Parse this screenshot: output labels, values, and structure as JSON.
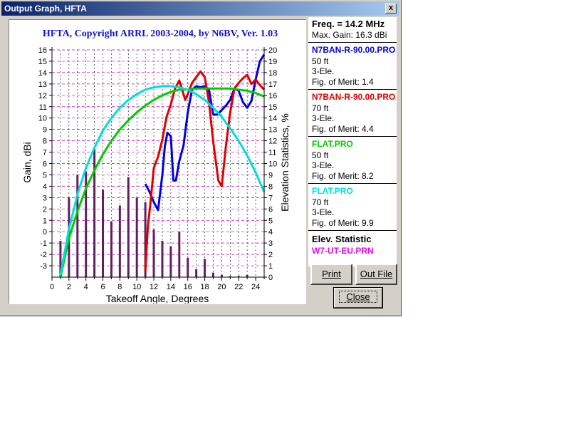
{
  "window": {
    "title": "Output Graph, HFTA",
    "close_glyph": "x"
  },
  "graph": {
    "title": "HFTA, Copyright ARRL 2003-2004, by N6BV, Ver. 1.03",
    "title_color": "#1414c8"
  },
  "legend": {
    "freq": "Freq. = 14.2 MHz",
    "max_gain": "Max. Gain: 16.3 dBi",
    "entries": [
      {
        "name": "N7BAN-R-90.00.PRO",
        "height": "50 ft",
        "type": "3-Ele.",
        "merit": "Fig. of Merit:  1.4",
        "color": "#0000e0"
      },
      {
        "name": "N7BAN-R-90.00.PRO",
        "height": "70 ft",
        "type": "3-Ele.",
        "merit": "Fig. of Merit:  4.4",
        "color": "#e00000"
      },
      {
        "name": "FLAT.PRO",
        "height": "50 ft",
        "type": "3-Ele.",
        "merit": "Fig. of Merit:  8.2",
        "color": "#00cc00"
      },
      {
        "name": "FLAT.PRO",
        "height": "70 ft",
        "type": "3-Ele.",
        "merit": "Fig. of Merit:  9.9",
        "color": "#00dddd"
      }
    ],
    "elev_heading": "Elev. Statistic",
    "elev_file": "W7-UT-EU.PRN",
    "elev_color": "#e010e0"
  },
  "buttons": {
    "print": "Print",
    "outfile": "Out File",
    "close": "Close"
  },
  "chart_data": {
    "type": "line",
    "title": "HFTA, Copyright ARRL 2003-2004, by N6BV, Ver. 1.03",
    "xlabel": "Takeoff Angle, Degrees",
    "ylabel": "Gain, dBi",
    "y2label": "Elevation Statistics, %",
    "xlim": [
      0,
      25
    ],
    "ylim": [
      -4,
      16
    ],
    "y2lim": [
      0,
      20
    ],
    "x_ticks": [
      0,
      2,
      4,
      6,
      8,
      10,
      12,
      14,
      16,
      18,
      20,
      22,
      24
    ],
    "y_ticks": [
      -3,
      -2,
      -1,
      0,
      1,
      2,
      3,
      4,
      5,
      6,
      7,
      8,
      9,
      10,
      11,
      12,
      13,
      14,
      15,
      16
    ],
    "y2_ticks": [
      0,
      1,
      2,
      3,
      4,
      5,
      6,
      7,
      8,
      9,
      10,
      11,
      12,
      13,
      14,
      15,
      16,
      17,
      18,
      19,
      20
    ],
    "grid": true,
    "series": [
      {
        "color": "#0000e0",
        "x": [
          11,
          11.5,
          12,
          12.5,
          13,
          13.3,
          13.6,
          14,
          14.3,
          14.6,
          15,
          15.5,
          16,
          16.5,
          17,
          17.5,
          18,
          18.5,
          19,
          19.5,
          20,
          20.5,
          21,
          21.5,
          22,
          22.5,
          23,
          23.5,
          24,
          24.5,
          25
        ],
        "y": [
          4.2,
          3.5,
          2.6,
          1.9,
          5.0,
          7.5,
          8.7,
          8.4,
          4.5,
          4.5,
          6.2,
          7.6,
          10.5,
          12.5,
          12.8,
          12.7,
          12.8,
          12.5,
          10.3,
          10.3,
          10.7,
          11.1,
          11.6,
          12.6,
          12.4,
          11.4,
          10.9,
          11.5,
          13.4,
          15.0,
          15.6
        ]
      },
      {
        "color": "#e00000",
        "x": [
          11,
          11.3,
          11.6,
          12,
          12.5,
          13,
          13.5,
          14,
          14.5,
          15,
          15.3,
          15.7,
          16,
          16.5,
          17,
          17.5,
          18,
          18.5,
          19,
          19.3,
          19.6,
          20,
          20.5,
          21,
          21.5,
          22,
          22.5,
          23,
          23.5,
          24,
          24.5,
          25
        ],
        "y": [
          -3.5,
          0.5,
          2.5,
          5.6,
          6.6,
          8.1,
          10.1,
          11.2,
          12.6,
          13.3,
          12.6,
          11.6,
          12.1,
          13.1,
          13.6,
          14.1,
          13.6,
          11.4,
          7.9,
          6.2,
          4.5,
          4.0,
          7.6,
          10.5,
          12.6,
          13.1,
          13.5,
          13.8,
          13.0,
          13.4,
          12.9,
          12.5
        ]
      },
      {
        "color": "#00cc00",
        "x": [
          1,
          2,
          3,
          4,
          5,
          6,
          7,
          8,
          9,
          10,
          11,
          12,
          13,
          14,
          15,
          16,
          17,
          18,
          19,
          20,
          21,
          22,
          23,
          24,
          25
        ],
        "y": [
          -4.0,
          -0.6,
          1.8,
          3.8,
          5.4,
          6.8,
          8.0,
          9.0,
          9.8,
          10.5,
          11.1,
          11.6,
          12.0,
          12.3,
          12.5,
          12.5,
          12.6,
          12.6,
          12.6,
          12.6,
          12.6,
          12.5,
          12.4,
          12.2,
          11.9
        ]
      },
      {
        "color": "#00dddd",
        "x": [
          1,
          2,
          3,
          4,
          5,
          6,
          7,
          8,
          9,
          10,
          11,
          12,
          13,
          14,
          15,
          16,
          17,
          18,
          19,
          20,
          21,
          22,
          23,
          24,
          25
        ],
        "y": [
          -3.8,
          0.2,
          3.3,
          5.6,
          7.4,
          8.9,
          10.0,
          10.9,
          11.6,
          12.1,
          12.5,
          12.7,
          12.8,
          12.8,
          12.7,
          12.5,
          12.1,
          11.6,
          10.9,
          10.1,
          9.1,
          8.0,
          6.7,
          5.2,
          3.5
        ]
      }
    ],
    "bars": {
      "color": "#602060",
      "x": [
        1,
        2,
        3,
        4,
        5,
        6,
        7,
        8,
        9,
        10,
        11,
        12,
        13,
        14,
        15,
        16,
        17,
        18,
        19,
        20,
        21,
        22,
        23
      ],
      "y2": [
        3.2,
        7.0,
        9.0,
        9.3,
        11.3,
        7.7,
        4.9,
        6.3,
        8.8,
        7.0,
        6.6,
        4.2,
        3.2,
        2.7,
        4.0,
        1.7,
        0.7,
        1.6,
        0.4,
        0.2,
        0.1,
        0.1,
        0.2
      ]
    }
  }
}
